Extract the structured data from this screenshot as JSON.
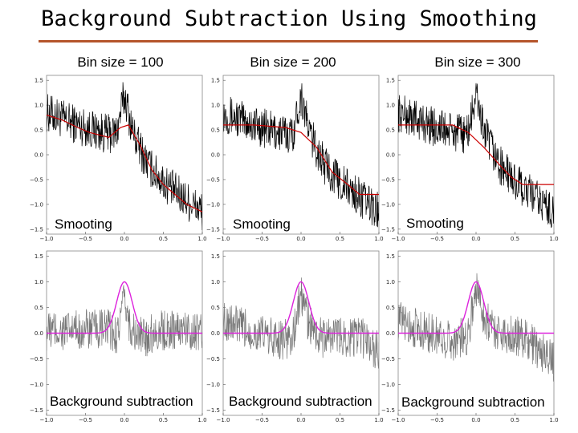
{
  "title": "Background Subtraction Using Smoothing",
  "colors": {
    "title_rule": "#b5552b",
    "signal": "#000000",
    "smooth": "#cc0000",
    "residual": "#777777",
    "gaussian": "#dd22dd"
  },
  "columns": [
    {
      "header": "Bin size = 100"
    },
    {
      "header": "Bin size = 200"
    },
    {
      "header": "Bin size = 300"
    }
  ],
  "chart_data": [
    {
      "type": "line",
      "row": "smoothing",
      "bin_size": 100,
      "label": "Smooting",
      "xlim": [
        -1.0,
        1.0
      ],
      "ylim": [
        -1.6,
        1.6
      ],
      "x_ticks": [
        "-1.0",
        "-0.5",
        "0.0",
        "0.5",
        "1.0"
      ],
      "y_ticks": [
        "1.5",
        "1.0",
        "0.5",
        "0.0",
        "-0.5",
        "-1.0",
        "-1.5"
      ],
      "series": [
        {
          "name": "signal",
          "color": "#000000"
        },
        {
          "name": "smoothed background",
          "color": "#cc0000",
          "x": [
            -1.0,
            -0.8,
            -0.6,
            -0.45,
            -0.2,
            -0.05,
            0.05,
            0.2,
            0.35,
            0.5,
            0.65,
            0.8,
            1.0
          ],
          "y": [
            0.8,
            0.7,
            0.55,
            0.45,
            0.35,
            0.55,
            0.6,
            0.2,
            -0.3,
            -0.6,
            -0.8,
            -1.0,
            -1.15
          ]
        }
      ]
    },
    {
      "type": "line",
      "row": "smoothing",
      "bin_size": 200,
      "label": "Smooting",
      "xlim": [
        -1.0,
        1.0
      ],
      "ylim": [
        -1.6,
        1.6
      ],
      "x_ticks": [
        "-1.0",
        "-0.5",
        "0.0",
        "0.5",
        "1.0"
      ],
      "y_ticks": [
        "1.5",
        "1.0",
        "0.5",
        "0.0",
        "-0.5",
        "-1.0",
        "-1.5"
      ],
      "series": [
        {
          "name": "signal",
          "color": "#000000"
        },
        {
          "name": "smoothed background",
          "color": "#cc0000",
          "x": [
            -1.0,
            -0.6,
            -0.2,
            0.0,
            0.2,
            0.4,
            0.6,
            0.75,
            1.0
          ],
          "y": [
            0.6,
            0.6,
            0.55,
            0.45,
            0.15,
            -0.35,
            -0.6,
            -0.8,
            -0.8
          ]
        }
      ]
    },
    {
      "type": "line",
      "row": "smoothing",
      "bin_size": 300,
      "label": "Smooting",
      "xlim": [
        -1.0,
        1.0
      ],
      "ylim": [
        -1.6,
        1.6
      ],
      "x_ticks": [
        "-1.0",
        "-0.5",
        "0.0",
        "0.5",
        "1.0"
      ],
      "y_ticks": [
        "1.5",
        "1.0",
        "0.5",
        "0.0",
        "-0.5",
        "-1.0",
        "-1.5"
      ],
      "series": [
        {
          "name": "signal",
          "color": "#000000"
        },
        {
          "name": "smoothed background",
          "color": "#cc0000",
          "x": [
            -1.0,
            -0.5,
            -0.3,
            -0.1,
            0.1,
            0.3,
            0.45,
            0.6,
            1.0
          ],
          "y": [
            0.6,
            0.6,
            0.6,
            0.45,
            0.15,
            -0.2,
            -0.45,
            -0.6,
            -0.6
          ]
        }
      ]
    },
    {
      "type": "line",
      "row": "subtraction",
      "bin_size": 100,
      "label": "Background subtraction",
      "xlim": [
        -1.0,
        1.0
      ],
      "ylim": [
        -1.6,
        1.6
      ],
      "x_ticks": [
        "-1.0",
        "-0.5",
        "0.0",
        "0.5",
        "1.0"
      ],
      "y_ticks": [
        "1.5",
        "1.0",
        "0.5",
        "0.0",
        "-0.5",
        "-1.0",
        "-1.5"
      ],
      "series": [
        {
          "name": "residual",
          "color": "#777777"
        },
        {
          "name": "gaussian",
          "color": "#dd22dd",
          "amplitude": 1.0,
          "center": 0.0,
          "sigma": 0.1
        }
      ]
    },
    {
      "type": "line",
      "row": "subtraction",
      "bin_size": 200,
      "label": "Background subtraction",
      "xlim": [
        -1.0,
        1.0
      ],
      "ylim": [
        -1.6,
        1.6
      ],
      "x_ticks": [
        "-1.0",
        "-0.5",
        "0.0",
        "0.5",
        "1.0"
      ],
      "y_ticks": [
        "1.5",
        "1.0",
        "0.5",
        "0.0",
        "-0.5",
        "-1.0",
        "-1.5"
      ],
      "series": [
        {
          "name": "residual",
          "color": "#777777"
        },
        {
          "name": "gaussian",
          "color": "#dd22dd",
          "amplitude": 1.0,
          "center": 0.0,
          "sigma": 0.1
        }
      ]
    },
    {
      "type": "line",
      "row": "subtraction",
      "bin_size": 300,
      "label": "Background subtraction",
      "xlim": [
        -1.0,
        1.0
      ],
      "ylim": [
        -1.6,
        1.6
      ],
      "x_ticks": [
        "-1.0",
        "-0.5",
        "0.0",
        "0.5",
        "1.0"
      ],
      "y_ticks": [
        "1.5",
        "1.0",
        "0.5",
        "0.0",
        "-0.5",
        "-1.0",
        "-1.5"
      ],
      "series": [
        {
          "name": "residual",
          "color": "#777777"
        },
        {
          "name": "gaussian",
          "color": "#dd22dd",
          "amplitude": 1.0,
          "center": 0.0,
          "sigma": 0.1
        }
      ]
    }
  ]
}
